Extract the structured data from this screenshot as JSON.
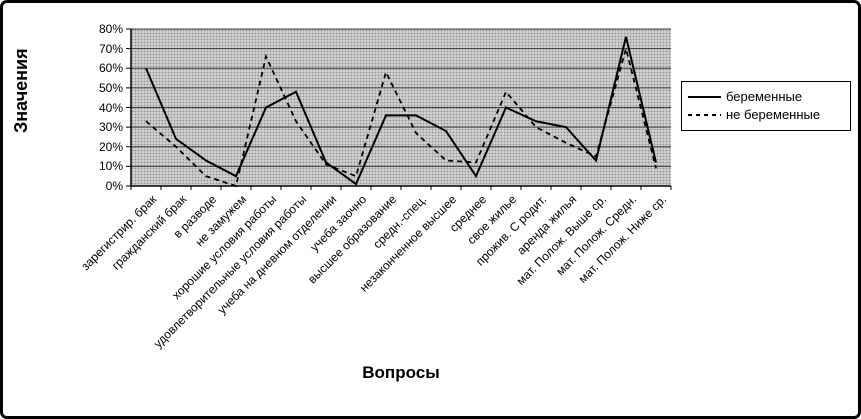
{
  "chart_data": {
    "type": "line",
    "title": "",
    "ylabel": "Значения",
    "xlabel": "Вопросы",
    "ylim": [
      0,
      80
    ],
    "yticks": [
      "0%",
      "10%",
      "20%",
      "30%",
      "40%",
      "50%",
      "60%",
      "70%",
      "80%"
    ],
    "grid": true,
    "legend_position": "right",
    "categories": [
      "зарегистрир. брак",
      "гражданский брак",
      "в разводе",
      "не замужем",
      "хорошие условия работы",
      "удовлетворительные условия работы",
      "учеба на дневном отделении",
      "учеба заочно",
      "высшее образование",
      "средн.-спец.",
      "незаконченное высшее",
      "среднее",
      "свое жилье",
      "прожив. С родит.",
      "аренда жилья",
      "мат. Полож. Выше ср.",
      "мат. Полож. Средн.",
      "мат. Полож. Ниже ср."
    ],
    "series": [
      {
        "name": "беременные",
        "line_style": "solid",
        "values": [
          60,
          24,
          13,
          5,
          40,
          48,
          12,
          1,
          36,
          36,
          28,
          5,
          40,
          33,
          30,
          13,
          76,
          12
        ]
      },
      {
        "name": "не беременные",
        "line_style": "dashed",
        "values": [
          33,
          20,
          5,
          0,
          66,
          33,
          11,
          5,
          58,
          27,
          13,
          12,
          48,
          30,
          22,
          15,
          70,
          9
        ]
      }
    ],
    "colors": {
      "line": "#000000",
      "plot_bg": "#cfcfcf",
      "grid": "#3a3a3a",
      "frame": "#000000"
    }
  }
}
